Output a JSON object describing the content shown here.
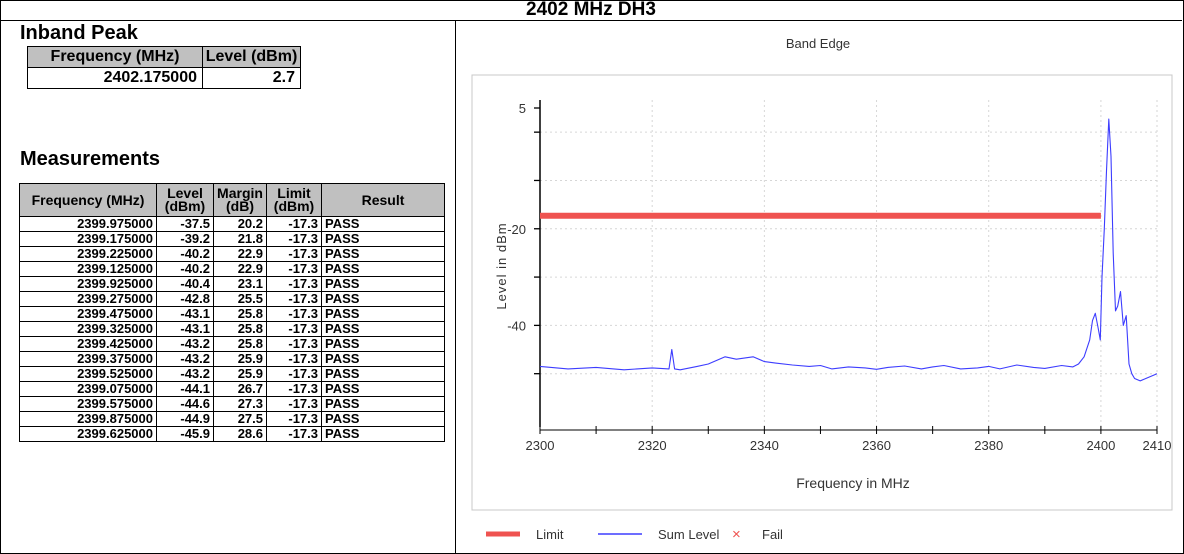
{
  "title": "2402 MHz DH3",
  "inband": {
    "heading": "Inband Peak",
    "headers": [
      "Frequency (MHz)",
      "Level (dBm)"
    ],
    "row": [
      "2402.175000",
      "2.7"
    ]
  },
  "measurements": {
    "heading": "Measurements",
    "headers": [
      "Frequency (MHz)",
      "Level (dBm)",
      "Margin (dB)",
      "Limit (dBm)",
      "Result"
    ],
    "rows": [
      [
        "2399.975000",
        "-37.5",
        "20.2",
        "-17.3",
        "PASS"
      ],
      [
        "2399.175000",
        "-39.2",
        "21.8",
        "-17.3",
        "PASS"
      ],
      [
        "2399.225000",
        "-40.2",
        "22.9",
        "-17.3",
        "PASS"
      ],
      [
        "2399.125000",
        "-40.2",
        "22.9",
        "-17.3",
        "PASS"
      ],
      [
        "2399.925000",
        "-40.4",
        "23.1",
        "-17.3",
        "PASS"
      ],
      [
        "2399.275000",
        "-42.8",
        "25.5",
        "-17.3",
        "PASS"
      ],
      [
        "2399.475000",
        "-43.1",
        "25.8",
        "-17.3",
        "PASS"
      ],
      [
        "2399.325000",
        "-43.1",
        "25.8",
        "-17.3",
        "PASS"
      ],
      [
        "2399.425000",
        "-43.2",
        "25.8",
        "-17.3",
        "PASS"
      ],
      [
        "2399.375000",
        "-43.2",
        "25.9",
        "-17.3",
        "PASS"
      ],
      [
        "2399.525000",
        "-43.2",
        "25.9",
        "-17.3",
        "PASS"
      ],
      [
        "2399.075000",
        "-44.1",
        "26.7",
        "-17.3",
        "PASS"
      ],
      [
        "2399.575000",
        "-44.6",
        "27.3",
        "-17.3",
        "PASS"
      ],
      [
        "2399.875000",
        "-44.9",
        "27.5",
        "-17.3",
        "PASS"
      ],
      [
        "2399.625000",
        "-45.9",
        "28.6",
        "-17.3",
        "PASS"
      ]
    ]
  },
  "chart_data": {
    "type": "line",
    "title": "Band Edge",
    "xlabel": "Frequency in MHz",
    "ylabel": "Level in dBm",
    "xlim": [
      2300,
      2410
    ],
    "ylim": [
      -60,
      5
    ],
    "x_ticks": [
      2300,
      2320,
      2340,
      2360,
      2380,
      2400,
      2410
    ],
    "y_ticks": [
      5,
      -20,
      -40
    ],
    "grid": true,
    "colors": {
      "limit": "#ef5350",
      "sum": "#3d3dff",
      "fail": "#ef5350"
    },
    "legend": [
      "Limit",
      "Sum Level",
      "Fail"
    ],
    "series": [
      {
        "name": "Limit",
        "x": [
          2300,
          2400
        ],
        "y": [
          -17.3,
          -17.3
        ]
      },
      {
        "name": "Sum Level",
        "x": [
          2300,
          2305,
          2310,
          2315,
          2320,
          2323,
          2323.5,
          2324,
          2325,
          2328,
          2330,
          2333,
          2335,
          2338,
          2340,
          2342,
          2345,
          2348,
          2350,
          2352,
          2355,
          2358,
          2360,
          2362,
          2365,
          2368,
          2370,
          2372,
          2375,
          2378,
          2380,
          2382,
          2385,
          2388,
          2390,
          2393,
          2395,
          2396,
          2397,
          2398,
          2398.5,
          2399,
          2399.5,
          2399.9,
          2400.2,
          2400.6,
          2401,
          2401.4,
          2401.8,
          2402.2,
          2402.6,
          2403,
          2403.5,
          2404,
          2404.5,
          2405,
          2405.5,
          2406,
          2407,
          2408,
          2409,
          2410
        ],
        "y": [
          -48.5,
          -49,
          -48.7,
          -49.2,
          -48.8,
          -49,
          -45,
          -49,
          -49.2,
          -48.5,
          -48,
          -46.5,
          -47,
          -46.5,
          -47.5,
          -47.8,
          -48.2,
          -48.5,
          -48.3,
          -49,
          -48.6,
          -48.8,
          -49.1,
          -48.7,
          -48.4,
          -49,
          -48.6,
          -48.3,
          -49,
          -48.8,
          -48.5,
          -49,
          -48.2,
          -48.7,
          -48.9,
          -48.3,
          -48.6,
          -48,
          -46.5,
          -43,
          -39,
          -37.5,
          -40.5,
          -43,
          -30,
          -20,
          -8,
          2.7,
          -5,
          -25,
          -37,
          -36,
          -33,
          -40,
          -38,
          -48,
          -50,
          -51,
          -51.5,
          -51,
          -50.5,
          -50
        ]
      }
    ]
  }
}
